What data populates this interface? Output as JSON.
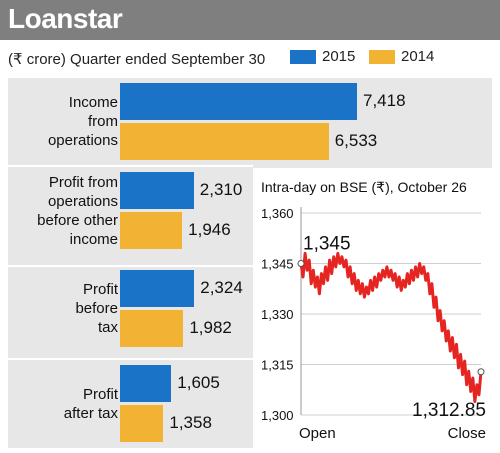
{
  "header": {
    "title": "Loanstar"
  },
  "subtitle": "(₹ crore) Quarter ended September 30",
  "colors": {
    "y2015": "#1a73c7",
    "y2014": "#f2b233",
    "line": "#e52521",
    "banner": "#7f7f7f",
    "panel": "#e7e7e7"
  },
  "chart_data": [
    {
      "type": "bar",
      "orientation": "horizontal",
      "categories": [
        [
          "Income",
          "from",
          "operations"
        ],
        [
          "Profit from",
          "operations",
          "before other",
          "income"
        ],
        [
          "Profit",
          "before",
          "tax"
        ],
        [
          "Profit",
          "after tax"
        ]
      ],
      "series": [
        {
          "name": "2015",
          "values": [
            7418,
            2310,
            2324,
            1605
          ],
          "labels": [
            "7,418",
            "2,310",
            "2,324",
            "1,605"
          ]
        },
        {
          "name": "2014",
          "values": [
            6533,
            1946,
            1982,
            1358
          ],
          "labels": [
            "6,533",
            "1,946",
            "1,982",
            "1,358"
          ]
        }
      ]
    },
    {
      "type": "line",
      "title": "Intra-day on BSE (₹), October 26",
      "ylim": [
        1300,
        1360
      ],
      "yticks": [
        "1,360",
        "1,345",
        "1,330",
        "1,315",
        "1,300"
      ],
      "ytick_values": [
        1360,
        1345,
        1330,
        1315,
        1300
      ],
      "xlabels": [
        "Open",
        "Close"
      ],
      "annotations": [
        {
          "text": "1,345",
          "value": 1345
        },
        {
          "text": "1,312.85",
          "value": 1312.85
        }
      ],
      "values": [
        1345,
        1341,
        1348,
        1343,
        1346,
        1339,
        1343,
        1338,
        1341,
        1336,
        1342,
        1339,
        1344,
        1340,
        1346,
        1342,
        1347,
        1344,
        1348,
        1345,
        1347,
        1344,
        1346,
        1341,
        1344,
        1339,
        1342,
        1337,
        1340,
        1336,
        1339,
        1335,
        1338,
        1336,
        1340,
        1337,
        1341,
        1338,
        1342,
        1340,
        1343,
        1341,
        1344,
        1341,
        1343,
        1340,
        1342,
        1338,
        1341,
        1337,
        1340,
        1338,
        1342,
        1339,
        1343,
        1340,
        1344,
        1341,
        1345,
        1342,
        1344,
        1340,
        1342,
        1336,
        1339,
        1332,
        1335,
        1328,
        1331,
        1325,
        1328,
        1322,
        1325,
        1319,
        1323,
        1317,
        1321,
        1314,
        1318,
        1312,
        1316,
        1309,
        1313,
        1307,
        1311,
        1304,
        1309,
        1306,
        1312.85
      ]
    }
  ]
}
